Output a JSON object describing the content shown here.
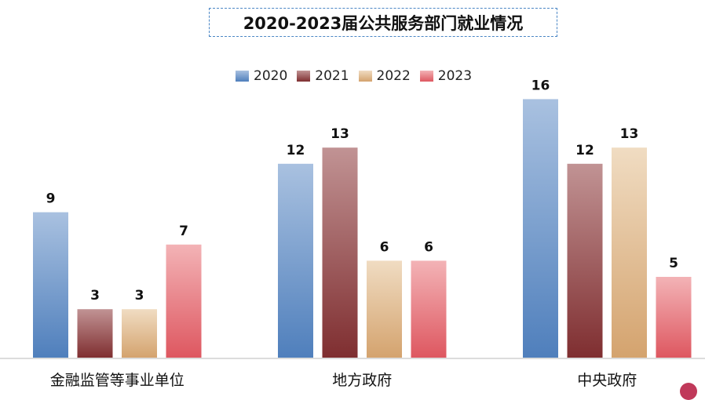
{
  "chart_data": {
    "type": "bar",
    "title": "2020-2023届公共服务部门就业情况",
    "categories": [
      "金融监管等事业单位",
      "地方政府",
      "中央政府"
    ],
    "series": [
      {
        "name": "2020",
        "values": [
          9,
          12,
          16
        ],
        "color_top": "#a9c1e0",
        "color_bottom": "#4f7fbc"
      },
      {
        "name": "2021",
        "values": [
          3,
          13,
          12
        ],
        "color_top": "#c19394",
        "color_bottom": "#7f2e30"
      },
      {
        "name": "2022",
        "values": [
          3,
          6,
          13
        ],
        "color_top": "#f0dcc2",
        "color_bottom": "#d4a36e"
      },
      {
        "name": "2023",
        "values": [
          7,
          6,
          5
        ],
        "color_top": "#f3b3b6",
        "color_bottom": "#de5760"
      }
    ],
    "xlabel": "",
    "ylabel": "",
    "ylim": [
      0,
      16
    ],
    "grid": false,
    "legend": "top-center"
  }
}
